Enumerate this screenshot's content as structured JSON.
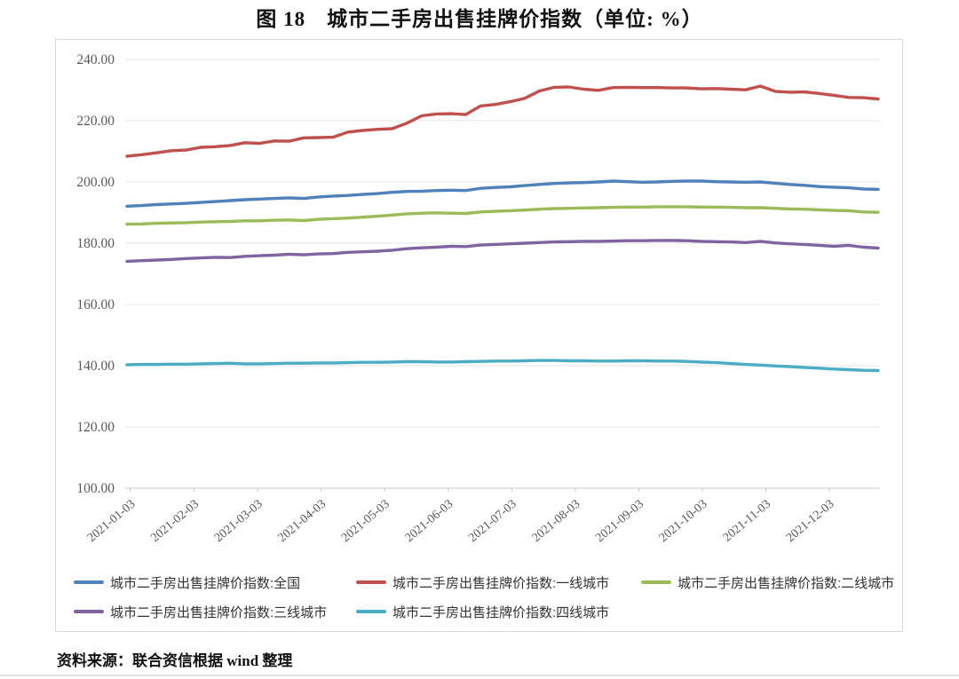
{
  "title": "图 18　城市二手房出售挂牌价指数（单位: %）",
  "source": "资料来源：联合资信根据 wind 整理",
  "chart_data": {
    "type": "line",
    "title": "图 18　城市二手房出售挂牌价指数（单位: %）",
    "unit": "%",
    "x_frequency": "weekly",
    "x_start": "2021-01-03",
    "x_end": "2021-12-26",
    "x_tick_labels": [
      "2021-01-03",
      "2021-02-03",
      "2021-03-03",
      "2021-04-03",
      "2021-05-03",
      "2021-06-03",
      "2021-07-03",
      "2021-08-03",
      "2021-09-03",
      "2021-10-03",
      "2021-11-03",
      "2021-12-03"
    ],
    "ylim": [
      100,
      240
    ],
    "yticks": [
      100,
      120,
      140,
      160,
      180,
      200,
      220,
      240
    ],
    "ytick_labels": [
      "100.00",
      "120.00",
      "140.00",
      "160.00",
      "180.00",
      "200.00",
      "220.00",
      "240.00"
    ],
    "grid": "horizontal",
    "legend_position": "bottom",
    "x_dates": [
      "2021-01-03",
      "2021-01-10",
      "2021-01-17",
      "2021-01-24",
      "2021-01-31",
      "2021-02-07",
      "2021-02-14",
      "2021-02-21",
      "2021-02-28",
      "2021-03-07",
      "2021-03-14",
      "2021-03-21",
      "2021-03-28",
      "2021-04-04",
      "2021-04-11",
      "2021-04-18",
      "2021-04-25",
      "2021-05-02",
      "2021-05-09",
      "2021-05-16",
      "2021-05-23",
      "2021-05-30",
      "2021-06-06",
      "2021-06-13",
      "2021-06-20",
      "2021-06-27",
      "2021-07-04",
      "2021-07-11",
      "2021-07-18",
      "2021-07-25",
      "2021-08-01",
      "2021-08-08",
      "2021-08-15",
      "2021-08-22",
      "2021-08-29",
      "2021-09-05",
      "2021-09-12",
      "2021-09-19",
      "2021-09-26",
      "2021-10-03",
      "2021-10-10",
      "2021-10-17",
      "2021-10-24",
      "2021-10-31",
      "2021-11-07",
      "2021-11-14",
      "2021-11-21",
      "2021-11-28",
      "2021-12-05",
      "2021-12-12",
      "2021-12-19",
      "2021-12-26"
    ],
    "series": [
      {
        "key": "national",
        "name": "城市二手房出售挂牌价指数:全国",
        "color": "#4F81BD",
        "values": [
          192.1,
          192.3,
          192.6,
          192.8,
          193.0,
          193.3,
          193.6,
          193.9,
          194.2,
          194.4,
          194.6,
          194.8,
          194.6,
          195.1,
          195.4,
          195.6,
          195.9,
          196.2,
          196.6,
          196.9,
          197.0,
          197.2,
          197.3,
          197.2,
          197.9,
          198.2,
          198.4,
          198.8,
          199.2,
          199.5,
          199.7,
          199.8,
          200.0,
          200.3,
          200.1,
          199.9,
          200.0,
          200.2,
          200.3,
          200.3,
          200.1,
          200.0,
          199.9,
          200.0,
          199.6,
          199.2,
          198.9,
          198.5,
          198.3,
          198.1,
          197.7,
          197.6
        ]
      },
      {
        "key": "tier1",
        "name": "城市二手房出售挂牌价指数:一线城市",
        "color": "#C0504D",
        "values": [
          208.4,
          208.9,
          209.5,
          210.2,
          210.4,
          211.3,
          211.5,
          211.9,
          212.8,
          212.6,
          213.4,
          213.3,
          214.4,
          214.5,
          214.6,
          216.3,
          216.8,
          217.2,
          217.4,
          219.2,
          221.6,
          222.2,
          222.3,
          222.0,
          224.8,
          225.3,
          226.2,
          227.3,
          229.7,
          230.9,
          231.0,
          230.3,
          229.9,
          230.8,
          230.9,
          230.8,
          230.8,
          230.7,
          230.7,
          230.4,
          230.5,
          230.3,
          230.1,
          231.3,
          229.6,
          229.3,
          229.4,
          228.9,
          228.3,
          227.6,
          227.5,
          227.1
        ]
      },
      {
        "key": "tier2",
        "name": "城市二手房出售挂牌价指数:二线城市",
        "color": "#9BBB59",
        "values": [
          186.2,
          186.3,
          186.5,
          186.6,
          186.7,
          186.9,
          187.0,
          187.1,
          187.3,
          187.3,
          187.5,
          187.6,
          187.4,
          187.8,
          188.0,
          188.2,
          188.5,
          188.8,
          189.2,
          189.6,
          189.8,
          189.9,
          189.8,
          189.7,
          190.2,
          190.4,
          190.6,
          190.8,
          191.1,
          191.3,
          191.4,
          191.5,
          191.6,
          191.7,
          191.8,
          191.8,
          191.9,
          191.9,
          191.9,
          191.8,
          191.8,
          191.7,
          191.6,
          191.6,
          191.4,
          191.2,
          191.1,
          190.9,
          190.7,
          190.6,
          190.2,
          190.1
        ]
      },
      {
        "key": "tier3",
        "name": "城市二手房出售挂牌价指数:三线城市",
        "color": "#8064A2",
        "values": [
          174.1,
          174.3,
          174.5,
          174.7,
          175.0,
          175.2,
          175.4,
          175.3,
          175.7,
          175.9,
          176.1,
          176.4,
          176.2,
          176.5,
          176.6,
          177.0,
          177.2,
          177.4,
          177.7,
          178.2,
          178.5,
          178.7,
          179.0,
          178.9,
          179.4,
          179.6,
          179.8,
          180.0,
          180.2,
          180.4,
          180.5,
          180.6,
          180.6,
          180.7,
          180.8,
          180.8,
          180.9,
          180.9,
          180.8,
          180.6,
          180.5,
          180.4,
          180.2,
          180.6,
          180.1,
          179.8,
          179.6,
          179.3,
          179.0,
          179.3,
          178.7,
          178.4
        ]
      },
      {
        "key": "tier4",
        "name": "城市二手房出售挂牌价指数:四线城市",
        "color": "#4BACC6",
        "values": [
          140.3,
          140.4,
          140.4,
          140.5,
          140.5,
          140.6,
          140.7,
          140.8,
          140.6,
          140.6,
          140.7,
          140.8,
          140.8,
          140.9,
          140.9,
          141.0,
          141.1,
          141.1,
          141.2,
          141.3,
          141.3,
          141.2,
          141.2,
          141.3,
          141.4,
          141.5,
          141.5,
          141.6,
          141.7,
          141.7,
          141.6,
          141.6,
          141.5,
          141.5,
          141.6,
          141.6,
          141.5,
          141.5,
          141.4,
          141.2,
          141.0,
          140.7,
          140.4,
          140.2,
          139.9,
          139.7,
          139.4,
          139.2,
          138.9,
          138.7,
          138.5,
          138.4
        ]
      }
    ]
  }
}
